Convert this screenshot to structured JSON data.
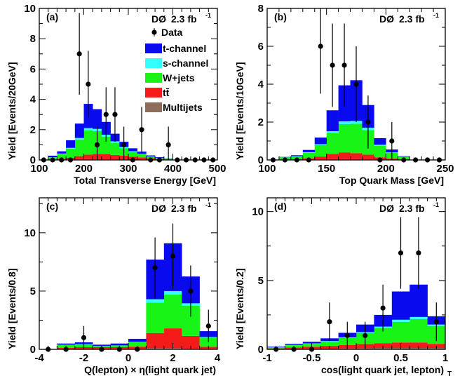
{
  "colors": {
    "t-channel": "#0a0aef",
    "s-channel": "#33ffff",
    "W+jets": "#16f516",
    "ttbar": "#f51b1b",
    "Multijets": "#8c6e5a"
  },
  "legend": {
    "data_label": "Data",
    "entries": [
      {
        "key": "t-channel",
        "label": "t-channel"
      },
      {
        "key": "s-channel",
        "label": "s-channel"
      },
      {
        "key": "W+jets",
        "label": "W+jets"
      },
      {
        "key": "ttbar",
        "label": "tt̄"
      },
      {
        "key": "Multijets",
        "label": "Multijets"
      }
    ]
  },
  "experiment": "DØ",
  "luminosity": "2.3 fb",
  "luminosity_exp": "-1",
  "chart_data": [
    {
      "type": "bar",
      "panel": "(a)",
      "xlabel": "Total Transverse Energy [GeV]",
      "ylabel": "Yield [Events/20GeV]",
      "xlim": [
        100,
        500
      ],
      "ylim": [
        0,
        10
      ],
      "xticks": [
        100,
        200,
        300,
        400,
        500
      ],
      "yticks": [
        0,
        2,
        4,
        6,
        8,
        10
      ],
      "bin_edges": [
        120,
        140,
        160,
        180,
        200,
        220,
        240,
        260,
        280,
        300,
        320,
        340,
        360,
        380,
        400
      ],
      "series": [
        {
          "key": "Multijets",
          "values": [
            0.02,
            0.03,
            0.04,
            0.05,
            0.05,
            0.05,
            0.04,
            0.03,
            0.03,
            0.02,
            0.02,
            0.01,
            0.01,
            0.01
          ]
        },
        {
          "key": "ttbar",
          "values": [
            0.02,
            0.05,
            0.1,
            0.2,
            0.3,
            0.35,
            0.35,
            0.3,
            0.25,
            0.2,
            0.15,
            0.1,
            0.05,
            0.03
          ]
        },
        {
          "key": "W+jets",
          "values": [
            0.12,
            0.3,
            0.6,
            1.1,
            1.6,
            1.5,
            1.15,
            0.8,
            0.5,
            0.3,
            0.2,
            0.1,
            0.06,
            0.03
          ]
        },
        {
          "key": "s-channel",
          "values": [
            0.02,
            0.04,
            0.06,
            0.1,
            0.15,
            0.15,
            0.12,
            0.1,
            0.07,
            0.05,
            0.03,
            0.02,
            0.01,
            0.01
          ]
        },
        {
          "key": "t-channel",
          "values": [
            0.1,
            0.15,
            0.5,
            0.95,
            1.6,
            1.3,
            0.85,
            0.5,
            0.35,
            0.2,
            0.15,
            0.07,
            0.05,
            0.02
          ]
        }
      ],
      "data_points": [
        {
          "x": 110,
          "y": 0,
          "err": 0
        },
        {
          "x": 130,
          "y": 0,
          "err": 0
        },
        {
          "x": 150,
          "y": 0,
          "err": 0
        },
        {
          "x": 170,
          "y": 0,
          "err": 0
        },
        {
          "x": 190,
          "y": 7,
          "err": 2.7
        },
        {
          "x": 210,
          "y": 5,
          "err": 2.2
        },
        {
          "x": 230,
          "y": 1,
          "err": 1.2
        },
        {
          "x": 250,
          "y": 3,
          "err": 1.8
        },
        {
          "x": 270,
          "y": 3,
          "err": 1.8
        },
        {
          "x": 290,
          "y": 1,
          "err": 1.2
        },
        {
          "x": 310,
          "y": 0,
          "err": 0
        },
        {
          "x": 330,
          "y": 2,
          "err": 1.5
        },
        {
          "x": 350,
          "y": 0,
          "err": 0
        },
        {
          "x": 370,
          "y": 0,
          "err": 0
        },
        {
          "x": 390,
          "y": 1,
          "err": 1.2
        },
        {
          "x": 410,
          "y": 0,
          "err": 0
        },
        {
          "x": 430,
          "y": 0,
          "err": 0
        },
        {
          "x": 450,
          "y": 0,
          "err": 0
        },
        {
          "x": 470,
          "y": 0,
          "err": 0
        },
        {
          "x": 490,
          "y": 0,
          "err": 0
        }
      ]
    },
    {
      "type": "bar",
      "panel": "(b)",
      "xlabel": "Top Quark Mass [GeV]",
      "ylabel": "Yield [Events/10GeV]",
      "xlim": [
        100,
        250
      ],
      "ylim": [
        0,
        8
      ],
      "xticks": [
        100,
        150,
        200,
        250
      ],
      "yticks": [
        0,
        2,
        4,
        6,
        8
      ],
      "bin_edges": [
        110,
        120,
        130,
        140,
        150,
        160,
        170,
        180,
        190,
        200,
        210,
        220
      ],
      "series": [
        {
          "key": "Multijets",
          "values": [
            0.01,
            0.01,
            0.02,
            0.03,
            0.04,
            0.04,
            0.04,
            0.03,
            0.02,
            0.01,
            0.01
          ]
        },
        {
          "key": "ttbar",
          "values": [
            0.02,
            0.03,
            0.06,
            0.15,
            0.28,
            0.35,
            0.32,
            0.25,
            0.12,
            0.06,
            0.03
          ]
        },
        {
          "key": "W+jets",
          "values": [
            0.1,
            0.15,
            0.3,
            0.6,
            1.1,
            1.5,
            1.55,
            1.3,
            0.6,
            0.3,
            0.12
          ]
        },
        {
          "key": "s-channel",
          "values": [
            0.01,
            0.01,
            0.03,
            0.05,
            0.1,
            0.15,
            0.15,
            0.12,
            0.06,
            0.03,
            0.01
          ]
        },
        {
          "key": "t-channel",
          "values": [
            0.02,
            0.05,
            0.12,
            0.35,
            1.1,
            1.9,
            2.15,
            1.2,
            0.35,
            0.15,
            0.03
          ]
        }
      ],
      "data_points": [
        {
          "x": 105,
          "y": 0,
          "err": 0
        },
        {
          "x": 115,
          "y": 0,
          "err": 0
        },
        {
          "x": 125,
          "y": 0,
          "err": 0
        },
        {
          "x": 135,
          "y": 0,
          "err": 0
        },
        {
          "x": 145,
          "y": 6,
          "err": 2.5
        },
        {
          "x": 155,
          "y": 5,
          "err": 2.2
        },
        {
          "x": 165,
          "y": 5,
          "err": 2.2
        },
        {
          "x": 175,
          "y": 4,
          "err": 2.0
        },
        {
          "x": 185,
          "y": 2,
          "err": 1.4
        },
        {
          "x": 195,
          "y": 0,
          "err": 0
        },
        {
          "x": 205,
          "y": 1,
          "err": 1.0
        },
        {
          "x": 215,
          "y": 0,
          "err": 0
        },
        {
          "x": 225,
          "y": 0,
          "err": 0
        },
        {
          "x": 235,
          "y": 0,
          "err": 0
        },
        {
          "x": 245,
          "y": 0,
          "err": 0
        }
      ]
    },
    {
      "type": "bar",
      "panel": "(c)",
      "xlabel": "Q(lepton) × η(light quark jet)",
      "ylabel": "Yield [Events/0.8]",
      "xlim": [
        -4,
        4
      ],
      "ylim": [
        0,
        13
      ],
      "xticks": [
        -4,
        -2,
        0,
        2,
        4
      ],
      "yticks": [
        0,
        5,
        10
      ],
      "bin_edges": [
        -3.2,
        -2.4,
        -1.6,
        -0.8,
        0,
        0.8,
        1.6,
        2.4,
        3.2,
        4.0
      ],
      "series": [
        {
          "key": "Multijets",
          "values": [
            0.02,
            0.03,
            0.03,
            0.03,
            0.03,
            0.1,
            0.1,
            0.05,
            0.02
          ]
        },
        {
          "key": "ttbar",
          "values": [
            0.1,
            0.15,
            0.15,
            0.15,
            0.2,
            1.3,
            1.7,
            1.1,
            0.2
          ]
        },
        {
          "key": "W+jets",
          "values": [
            0.25,
            0.25,
            0.1,
            0.15,
            0.4,
            2.6,
            2.9,
            2.6,
            0.8
          ]
        },
        {
          "key": "s-channel",
          "values": [
            0.02,
            0.02,
            0.01,
            0.01,
            0.02,
            0.3,
            0.3,
            0.2,
            0.04
          ]
        },
        {
          "key": "t-channel",
          "values": [
            0.11,
            0.15,
            0.11,
            0.16,
            0.25,
            3.4,
            4.1,
            2.3,
            0.5
          ]
        }
      ],
      "data_points": [
        {
          "x": -3.6,
          "y": 0,
          "err": 0
        },
        {
          "x": -2.8,
          "y": 0,
          "err": 0
        },
        {
          "x": -2.0,
          "y": 1,
          "err": 1.0
        },
        {
          "x": -1.2,
          "y": 0,
          "err": 0
        },
        {
          "x": -0.4,
          "y": 0,
          "err": 0
        },
        {
          "x": 0.4,
          "y": 0,
          "err": 0
        },
        {
          "x": 1.2,
          "y": 7,
          "err": 2.6
        },
        {
          "x": 2.0,
          "y": 8,
          "err": 2.8
        },
        {
          "x": 2.8,
          "y": 5,
          "err": 2.2
        },
        {
          "x": 3.6,
          "y": 2,
          "err": 1.4
        }
      ]
    },
    {
      "type": "bar",
      "panel": "(d)",
      "xlabel": "cos(light quark jet, lepton)",
      "xlabel_sub": "T",
      "ylabel": "Yield [Events/0.2]",
      "xlim": [
        -1,
        1
      ],
      "ylim": [
        0,
        11
      ],
      "xticks": [
        -1,
        -0.5,
        0,
        0.5,
        1
      ],
      "yticks": [
        0,
        5,
        10
      ],
      "bin_edges": [
        -1.0,
        -0.8,
        -0.6,
        -0.4,
        -0.2,
        0.0,
        0.2,
        0.4,
        0.6,
        0.8,
        1.0
      ],
      "series": [
        {
          "key": "Multijets",
          "values": [
            0.02,
            0.03,
            0.04,
            0.05,
            0.07,
            0.08,
            0.1,
            0.1,
            0.1,
            0.1
          ]
        },
        {
          "key": "ttbar",
          "values": [
            0.05,
            0.1,
            0.15,
            0.2,
            0.25,
            0.3,
            0.35,
            0.4,
            0.4,
            0.3
          ]
        },
        {
          "key": "W+jets",
          "values": [
            0.08,
            0.17,
            0.21,
            0.3,
            0.5,
            0.8,
            1.1,
            1.5,
            1.7,
            1.3
          ]
        },
        {
          "key": "s-channel",
          "values": [
            0.01,
            0.02,
            0.03,
            0.05,
            0.05,
            0.07,
            0.1,
            0.15,
            0.15,
            0.1
          ]
        },
        {
          "key": "t-channel",
          "values": [
            0.04,
            0.08,
            0.12,
            0.2,
            0.33,
            0.55,
            0.85,
            2.05,
            2.35,
            0.6
          ]
        }
      ],
      "data_points": [
        {
          "x": -0.9,
          "y": 0,
          "err": 0
        },
        {
          "x": -0.7,
          "y": 0,
          "err": 0
        },
        {
          "x": -0.5,
          "y": 0,
          "err": 0
        },
        {
          "x": -0.3,
          "y": 2,
          "err": 1.4
        },
        {
          "x": -0.1,
          "y": 1,
          "err": 1.0
        },
        {
          "x": 0.1,
          "y": 1,
          "err": 1.0
        },
        {
          "x": 0.3,
          "y": 3,
          "err": 1.7
        },
        {
          "x": 0.5,
          "y": 7,
          "err": 2.6
        },
        {
          "x": 0.7,
          "y": 7,
          "err": 2.6
        },
        {
          "x": 0.9,
          "y": 2,
          "err": 1.4
        }
      ]
    }
  ]
}
